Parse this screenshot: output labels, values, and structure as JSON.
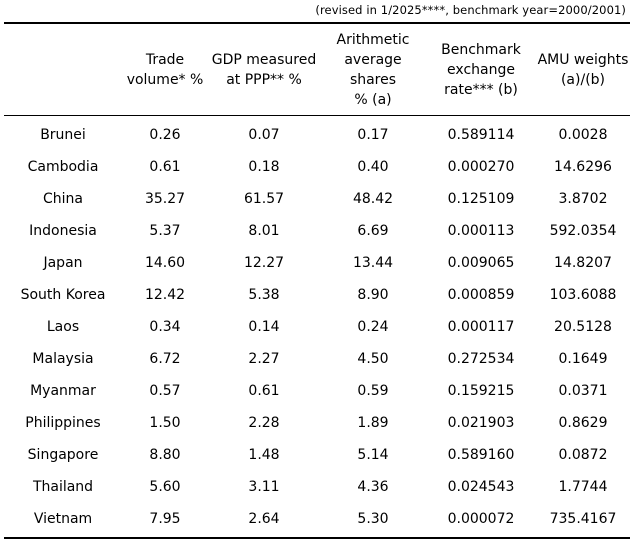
{
  "note": "(revised in 1/2025****, benchmark year=2000/2001)",
  "headers": [
    "",
    "Trade\nvolume*   %",
    "GDP measured\nat PPP**  %",
    "Arithmetic\naverage shares\n%  (a)",
    "Benchmark\nexchange\nrate***   (b)",
    "AMU weights\n(a)/(b)"
  ],
  "rows": [
    [
      "Brunei",
      "0.26",
      "0.07",
      "0.17",
      "0.589114",
      "0.0028"
    ],
    [
      "Cambodia",
      "0.61",
      "0.18",
      "0.40",
      "0.000270",
      "14.6296"
    ],
    [
      "China",
      "35.27",
      "61.57",
      "48.42",
      "0.125109",
      "3.8702"
    ],
    [
      "Indonesia",
      "5.37",
      "8.01",
      "6.69",
      "0.000113",
      "592.0354"
    ],
    [
      "Japan",
      "14.60",
      "12.27",
      "13.44",
      "0.009065",
      "14.8207"
    ],
    [
      "South Korea",
      "12.42",
      "5.38",
      "8.90",
      "0.000859",
      "103.6088"
    ],
    [
      "Laos",
      "0.34",
      "0.14",
      "0.24",
      "0.000117",
      "20.5128"
    ],
    [
      "Malaysia",
      "6.72",
      "2.27",
      "4.50",
      "0.272534",
      "0.1649"
    ],
    [
      "Myanmar",
      "0.57",
      "0.61",
      "0.59",
      "0.159215",
      "0.0371"
    ],
    [
      "Philippines",
      "1.50",
      "2.28",
      "1.89",
      "0.021903",
      "0.8629"
    ],
    [
      "Singapore",
      "8.80",
      "1.48",
      "5.14",
      "0.589160",
      "0.0872"
    ],
    [
      "Thailand",
      "5.60",
      "3.11",
      "4.36",
      "0.024543",
      "1.7744"
    ],
    [
      "Vietnam",
      "7.95",
      "2.64",
      "5.30",
      "0.000072",
      "735.4167"
    ]
  ]
}
